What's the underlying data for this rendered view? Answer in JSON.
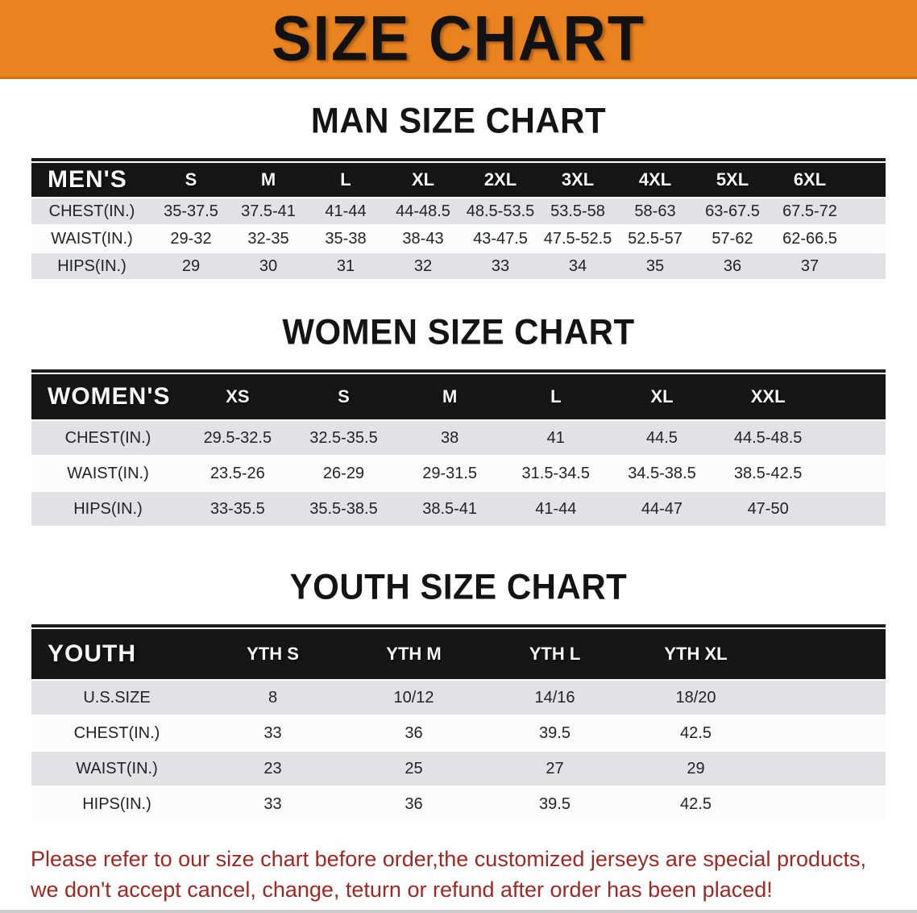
{
  "banner": {
    "title": "SIZE CHART",
    "bg_color": "#E8831F"
  },
  "sections": [
    {
      "heading": "MAN SIZE CHART",
      "table": {
        "label": "MEN'S",
        "columns": [
          "S",
          "M",
          "L",
          "XL",
          "2XL",
          "3XL",
          "4XL",
          "5XL",
          "6XL"
        ],
        "rows": [
          {
            "label": "CHEST(IN.)",
            "values": [
              "35-37.5",
              "37.5-41",
              "41-44",
              "44-48.5",
              "48.5-53.5",
              "53.5-58",
              "58-63",
              "63-67.5",
              "67.5-72"
            ]
          },
          {
            "label": "WAIST(IN.)",
            "values": [
              "29-32",
              "32-35",
              "35-38",
              "38-43",
              "43-47.5",
              "47.5-52.5",
              "52.5-57",
              "57-62",
              "62-66.5"
            ]
          },
          {
            "label": "HIPS(IN.)",
            "values": [
              "29",
              "30",
              "31",
              "32",
              "33",
              "34",
              "35",
              "36",
              "37"
            ]
          }
        ]
      }
    },
    {
      "heading": "WOMEN SIZE CHART",
      "table": {
        "label": "WOMEN'S",
        "columns": [
          "XS",
          "S",
          "M",
          "L",
          "XL",
          "XXL"
        ],
        "rows": [
          {
            "label": "CHEST(IN.)",
            "values": [
              "29.5-32.5",
              "32.5-35.5",
              "38",
              "41",
              "44.5",
              "44.5-48.5"
            ]
          },
          {
            "label": "WAIST(IN.)",
            "values": [
              "23.5-26",
              "26-29",
              "29-31.5",
              "31.5-34.5",
              "34.5-38.5",
              "38.5-42.5"
            ]
          },
          {
            "label": "HIPS(IN.)",
            "values": [
              "33-35.5",
              "35.5-38.5",
              "38.5-41",
              "41-44",
              "44-47",
              "47-50"
            ]
          }
        ]
      }
    },
    {
      "heading": "YOUTH SIZE CHART",
      "table": {
        "label": "YOUTH",
        "columns": [
          "YTH S",
          "YTH M",
          "YTH L",
          "YTH XL"
        ],
        "rows": [
          {
            "label": "U.S.SIZE",
            "values": [
              "8",
              "10/12",
              "14/16",
              "18/20"
            ]
          },
          {
            "label": "CHEST(IN.)",
            "values": [
              "33",
              "36",
              "39.5",
              "42.5"
            ]
          },
          {
            "label": "WAIST(IN.)",
            "values": [
              "23",
              "25",
              "27",
              "29"
            ]
          },
          {
            "label": "HIPS(IN.)",
            "values": [
              "33",
              "36",
              "39.5",
              "42.5"
            ]
          }
        ]
      }
    }
  ],
  "footer": {
    "line1": "Please refer to our size chart before order,the customized jerseys are special products,",
    "line2": "we don't accept cancel, change, teturn or refund after order has been placed!",
    "text_color": "#a02824"
  },
  "colors": {
    "banner_orange": "#E8831F",
    "header_black": "#161616",
    "row_gray": "#e2e2e4",
    "row_white": "#fcfcfc",
    "note_red": "#a02824"
  }
}
